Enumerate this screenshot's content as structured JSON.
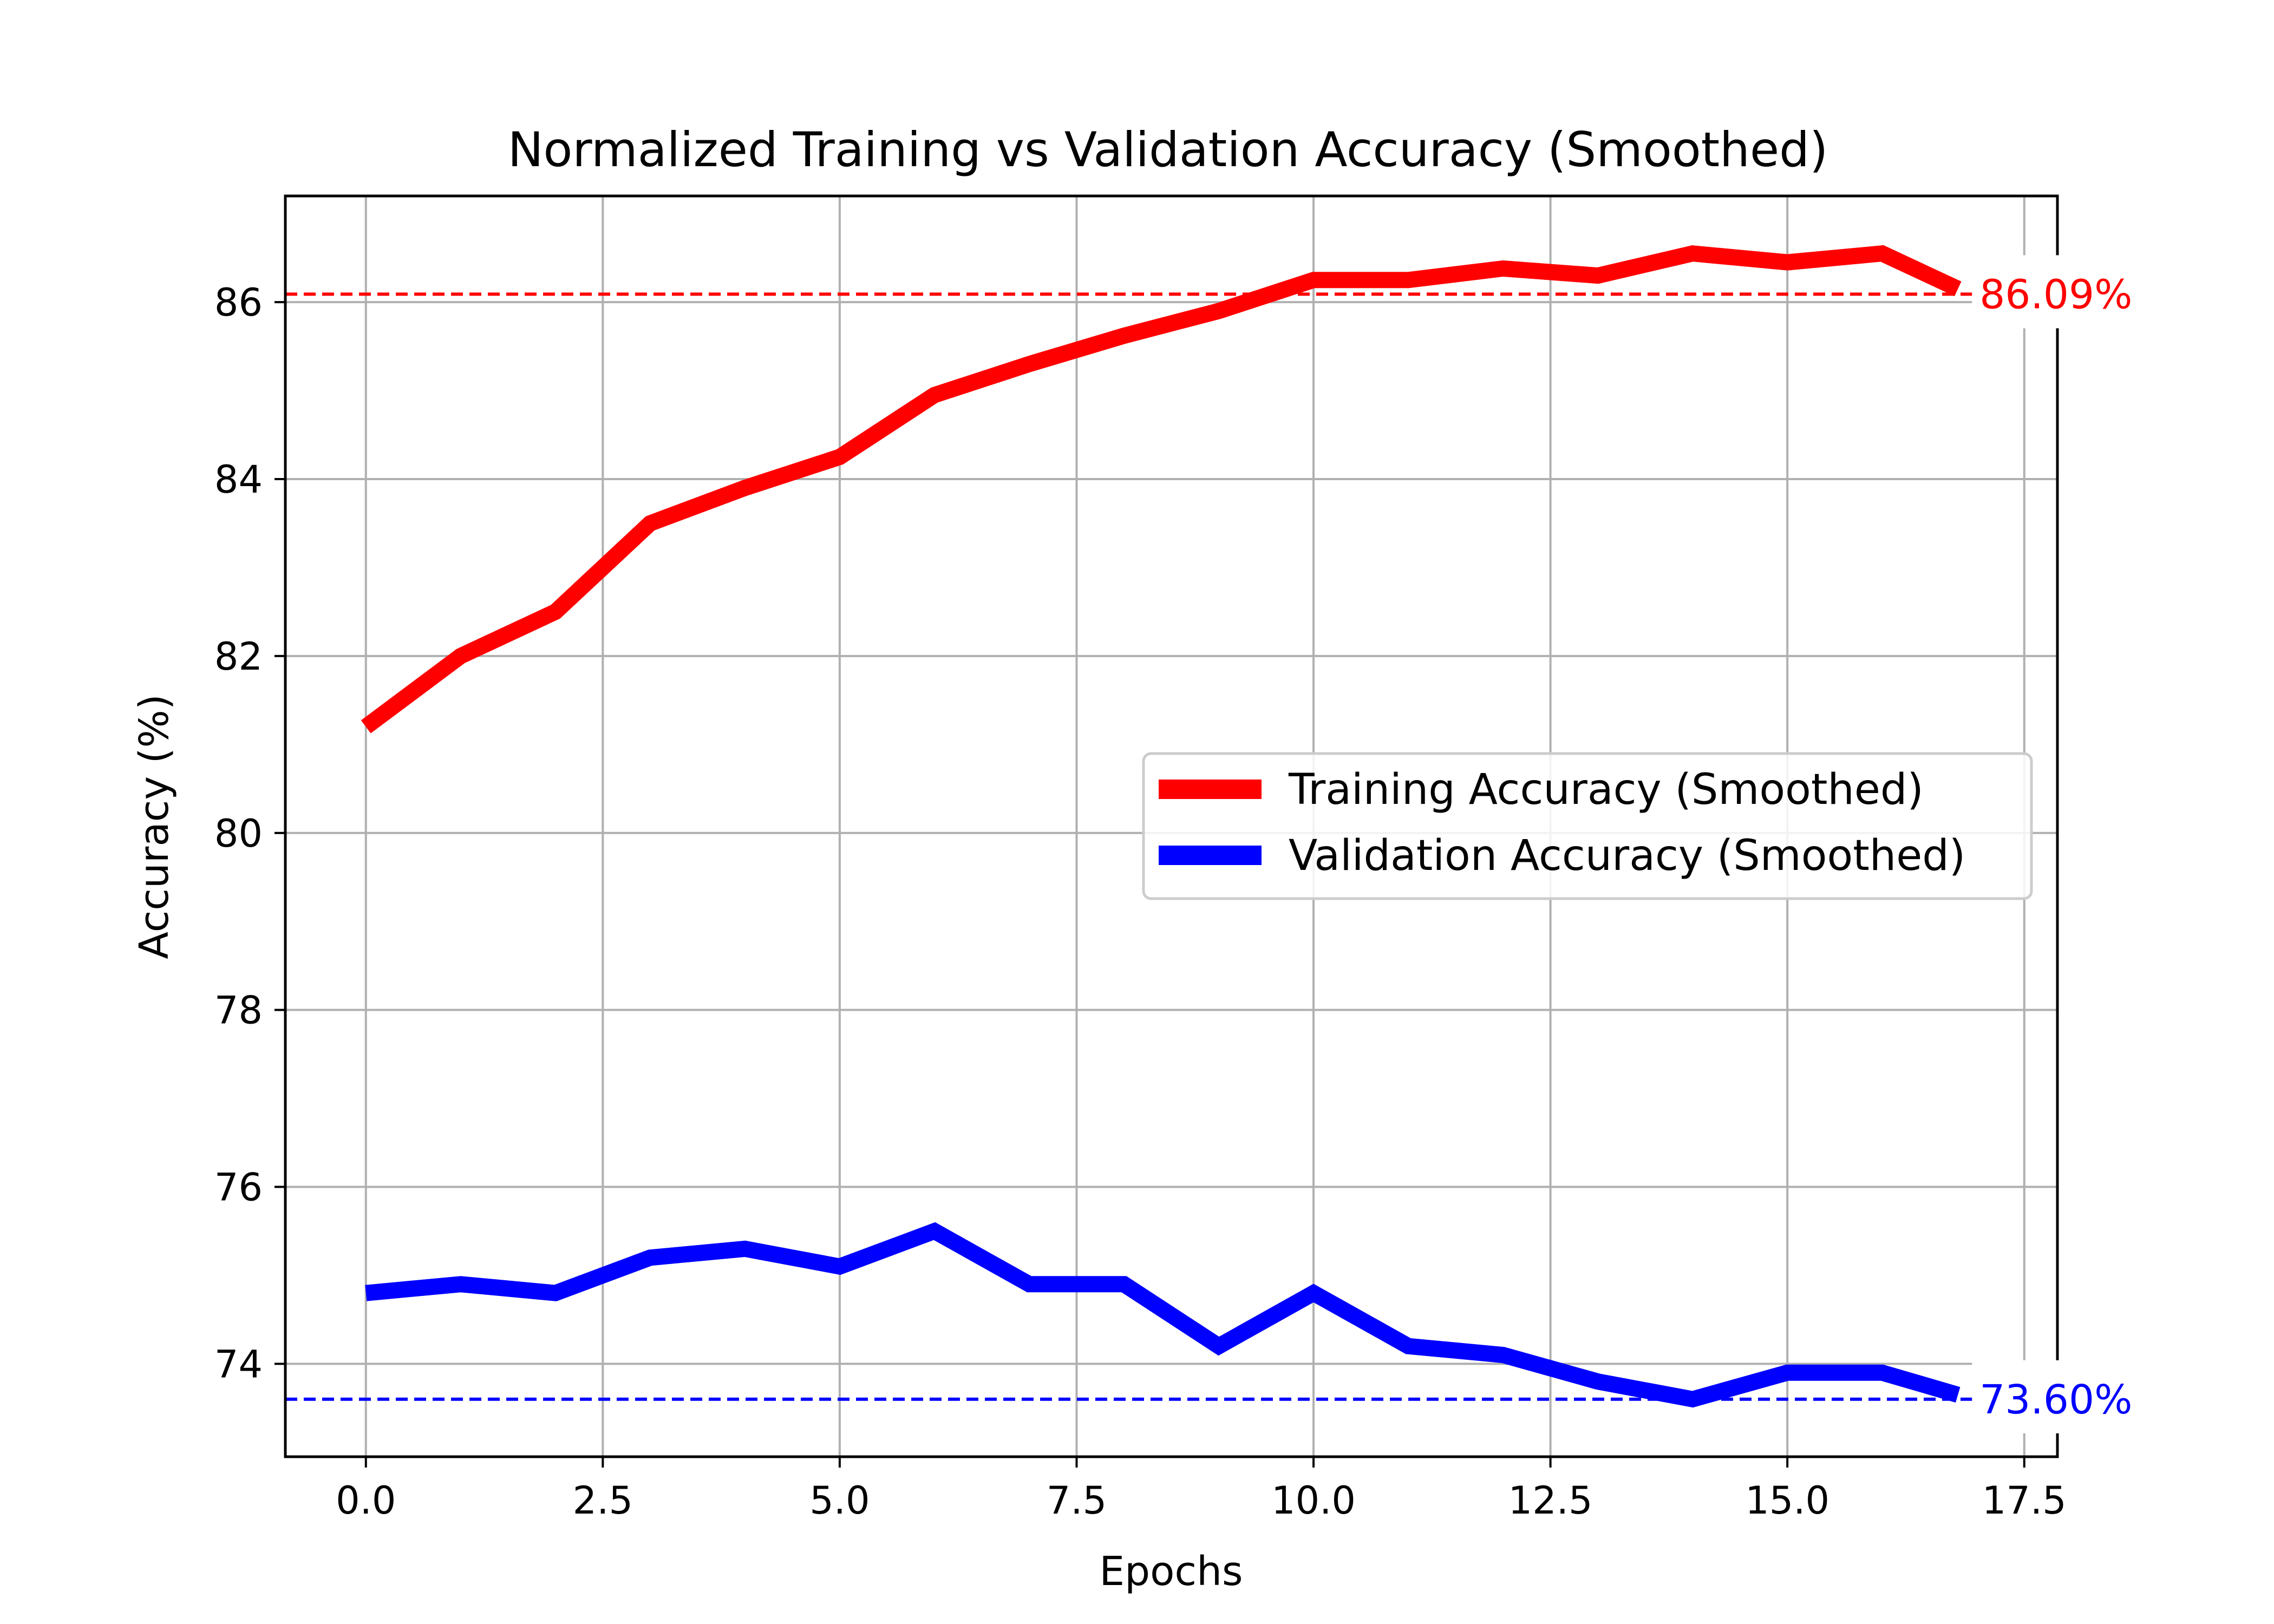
{
  "chart_data": {
    "type": "line",
    "title": "Normalized Training vs Validation Accuracy (Smoothed)",
    "xlabel": "Epochs",
    "ylabel": "Accuracy (%)",
    "xlim": [
      -0.85,
      17.85
    ],
    "ylim": [
      72.95,
      87.2
    ],
    "xticks": [
      0.0,
      2.5,
      5.0,
      7.5,
      10.0,
      12.5,
      15.0,
      17.5
    ],
    "xtick_labels": [
      "0.0",
      "2.5",
      "5.0",
      "7.5",
      "10.0",
      "12.5",
      "15.0",
      "17.5"
    ],
    "yticks": [
      74,
      76,
      78,
      80,
      82,
      84,
      86
    ],
    "ytick_labels": [
      "74",
      "76",
      "78",
      "80",
      "82",
      "84",
      "86"
    ],
    "grid": true,
    "legend_position": "center-right",
    "x": [
      0,
      1,
      2,
      3,
      4,
      5,
      6,
      7,
      8,
      9,
      10,
      11,
      12,
      13,
      14,
      15,
      16,
      16.8
    ],
    "series": [
      {
        "name": "Training Accuracy (Smoothed)",
        "color": "#ff0000",
        "values": [
          81.2,
          82.0,
          82.5,
          83.5,
          83.9,
          84.25,
          84.95,
          85.3,
          85.62,
          85.9,
          86.25,
          86.25,
          86.38,
          86.3,
          86.55,
          86.45,
          86.55,
          86.15
        ],
        "reference_value": 86.09,
        "reference_label": "86.09%"
      },
      {
        "name": "Validation Accuracy (Smoothed)",
        "color": "#0000ff",
        "values": [
          74.8,
          74.9,
          74.8,
          75.2,
          75.3,
          75.1,
          75.5,
          74.9,
          74.9,
          74.2,
          74.8,
          74.2,
          74.1,
          73.8,
          73.6,
          73.9,
          73.9,
          73.65
        ],
        "reference_value": 73.6,
        "reference_label": "73.60%"
      }
    ]
  }
}
